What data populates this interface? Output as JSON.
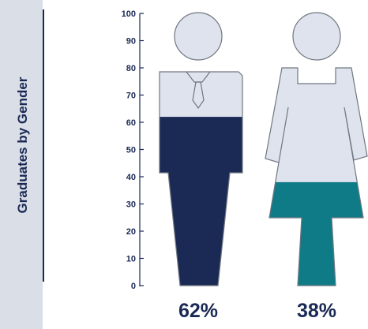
{
  "chart_data": {
    "type": "pictograph",
    "title": "Graduates by Gender",
    "ylim": [
      0,
      100
    ],
    "yticks": [
      0,
      10,
      20,
      30,
      40,
      50,
      60,
      70,
      80,
      90,
      100
    ],
    "series": [
      {
        "figure": "man",
        "value": 62,
        "label": "62%",
        "color": "#1b2a55"
      },
      {
        "figure": "woman",
        "value": 38,
        "label": "38%",
        "color": "#0f7b86"
      }
    ],
    "empty_color": "#dfe3ed",
    "outline_color": "#707780"
  }
}
